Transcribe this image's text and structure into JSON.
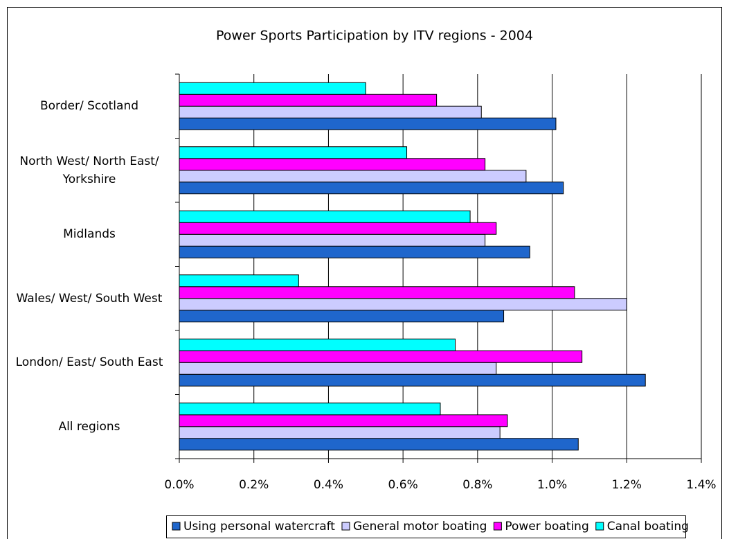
{
  "chart_data": {
    "type": "hbar",
    "title": "Power Sports Participation by ITV regions - 2004",
    "categories": [
      "Border/ Scotland",
      "North West/ North East/ Yorkshire",
      "Midlands",
      "Wales/ West/ South West",
      "London/ East/ South East",
      "All regions"
    ],
    "series": [
      {
        "name": "Using personal watercraft",
        "color": "#1f66cc",
        "values": [
          1.01,
          1.03,
          0.94,
          0.87,
          1.25,
          1.07
        ]
      },
      {
        "name": "General motor boating",
        "color": "#ccccff",
        "values": [
          0.81,
          0.93,
          0.82,
          1.2,
          0.85,
          0.86
        ]
      },
      {
        "name": "Power boating",
        "color": "#ff00ff",
        "values": [
          0.69,
          0.82,
          0.85,
          1.06,
          1.08,
          0.88
        ]
      },
      {
        "name": "Canal boating",
        "color": "#00ffff",
        "values": [
          0.5,
          0.61,
          0.78,
          0.32,
          0.74,
          0.7
        ]
      }
    ],
    "xlim": [
      0,
      1.4
    ],
    "xticks": [
      {
        "value": 0,
        "label": "0.0%"
      },
      {
        "value": 0.2,
        "label": "0.2%"
      },
      {
        "value": 0.4,
        "label": "0.4%"
      },
      {
        "value": 0.6,
        "label": "0.6%"
      },
      {
        "value": 0.8,
        "label": "0.8%"
      },
      {
        "value": 1.0,
        "label": "1.0%"
      },
      {
        "value": 1.2,
        "label": "1.2%"
      },
      {
        "value": 1.4,
        "label": "1.4%"
      }
    ],
    "grid": true,
    "legend": "bottom"
  }
}
